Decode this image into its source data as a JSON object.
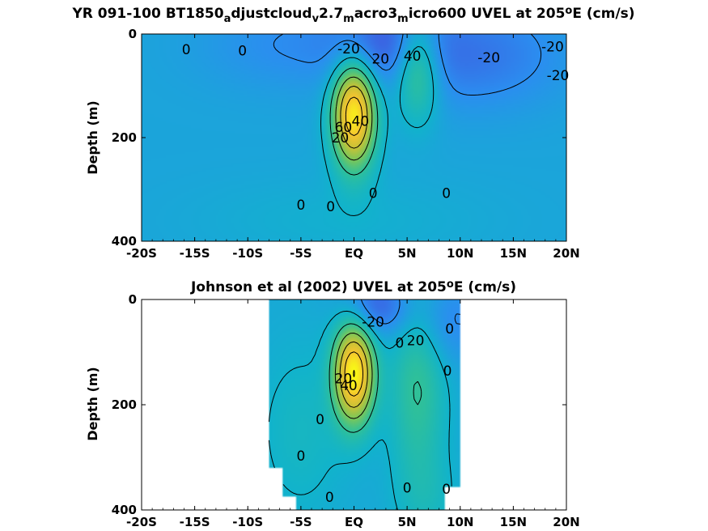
{
  "chart_data": [
    {
      "type": "heatmap",
      "title_parts": [
        "YR 091-100 BT1850",
        "a",
        "djustcloud",
        "v",
        "2.7",
        "m",
        "acro3",
        "m",
        "icro600 UVEL at 205",
        "o",
        "E (cm/s)"
      ],
      "ylabel": "Depth (m)",
      "xlim": [
        -20,
        20
      ],
      "ylim": [
        0,
        400
      ],
      "xticks": [
        -20,
        -15,
        -10,
        -5,
        0,
        5,
        10,
        15,
        20
      ],
      "xtick_labels": [
        "-20S",
        "-15S",
        "-10S",
        "-5S",
        "EQ",
        "5N",
        "10N",
        "15N",
        "20N"
      ],
      "yticks": [
        0,
        200,
        400
      ],
      "ytick_labels": [
        "0",
        "200",
        "400"
      ],
      "colorscale": [
        "#3d5ee0",
        "#2b8ef0",
        "#11b3cc",
        "#2fc09a",
        "#7ac75a",
        "#c6c237",
        "#f5c430",
        "#f8f816"
      ],
      "value_range": [
        -40,
        100
      ],
      "background": -8,
      "features": [
        {
          "name": "EUC",
          "x": 0,
          "y": 155,
          "amp": 105,
          "sx": 1.4,
          "sy": 70
        },
        {
          "name": "NECC",
          "x": 6,
          "y": 60,
          "amp": 45,
          "sx": 1.5,
          "sy": 70
        },
        {
          "name": "SEC-north",
          "x": 3,
          "y": 10,
          "amp": -22,
          "sx": 3.5,
          "sy": 55
        },
        {
          "name": "SEC-mid",
          "x": 11,
          "y": 40,
          "amp": -22,
          "sx": 6,
          "sy": 70
        },
        {
          "name": "SEC-south",
          "x": -6,
          "y": 20,
          "amp": -12,
          "sx": 6,
          "sy": 60
        },
        {
          "name": "deep",
          "x": -1,
          "y": 360,
          "amp": 6,
          "sx": 10,
          "sy": 60
        }
      ],
      "contour_labels": [
        {
          "text": "0",
          "x": -15.8,
          "y": 30
        },
        {
          "text": "0",
          "x": -10.5,
          "y": 32
        },
        {
          "text": "-20",
          "x": -0.5,
          "y": 28
        },
        {
          "text": "20",
          "x": 2.5,
          "y": 48
        },
        {
          "text": "40",
          "x": 5.5,
          "y": 42
        },
        {
          "text": "-20",
          "x": 12.7,
          "y": 45
        },
        {
          "text": "-20",
          "x": 18.7,
          "y": 24
        },
        {
          "text": "-20",
          "x": 19.2,
          "y": 80
        },
        {
          "text": "0",
          "x": -5.0,
          "y": 330
        },
        {
          "text": "0",
          "x": -2.2,
          "y": 333
        },
        {
          "text": "0",
          "x": 1.8,
          "y": 307
        },
        {
          "text": "0",
          "x": 8.7,
          "y": 307
        },
        {
          "text": "60",
          "x": -1.0,
          "y": 180
        },
        {
          "text": "20",
          "x": -1.3,
          "y": 200
        },
        {
          "text": "40",
          "x": 0.6,
          "y": 168
        }
      ]
    },
    {
      "type": "heatmap",
      "title_parts": [
        "Johnson et al (2002) UVEL at 205",
        "o",
        "E (cm/s)"
      ],
      "ylabel": "Depth (m)",
      "xlim": [
        -20,
        20
      ],
      "ylim": [
        0,
        400
      ],
      "data_xrange": [
        -8,
        10
      ],
      "xticks": [
        -20,
        -15,
        -10,
        -5,
        0,
        5,
        10,
        15,
        20
      ],
      "xtick_labels": [
        "-20S",
        "-15S",
        "-10S",
        "-5S",
        "EQ",
        "5N",
        "10N",
        "15N",
        "20N"
      ],
      "yticks": [
        0,
        200,
        400
      ],
      "ytick_labels": [
        "0",
        "200",
        "400"
      ],
      "colorscale": [
        "#3d5ee0",
        "#2b8ef0",
        "#11b3cc",
        "#2fc09a",
        "#7ac75a",
        "#c6c237",
        "#f5c430",
        "#f8f816"
      ],
      "value_range": [
        -40,
        100
      ],
      "background": -6,
      "features": [
        {
          "name": "EUC",
          "x": 0,
          "y": 140,
          "amp": 105,
          "sx": 1.3,
          "sy": 65
        },
        {
          "name": "NECC",
          "x": 6,
          "y": 150,
          "amp": 28,
          "sx": 1.8,
          "sy": 140
        },
        {
          "name": "SEC-surface",
          "x": 2.2,
          "y": 10,
          "amp": -30,
          "sx": 2.2,
          "sy": 40
        },
        {
          "name": "SEC-north",
          "x": 8.5,
          "y": 40,
          "amp": -18,
          "sx": 3,
          "sy": 60
        },
        {
          "name": "deep-south",
          "x": -5,
          "y": 250,
          "amp": 10,
          "sx": 3,
          "sy": 120
        },
        {
          "name": "deep-north",
          "x": 7,
          "y": 380,
          "amp": 8,
          "sx": 2,
          "sy": 60
        }
      ],
      "contour_labels": [
        {
          "text": "-20",
          "x": 1.8,
          "y": 42
        },
        {
          "text": "0",
          "x": 4.3,
          "y": 82
        },
        {
          "text": "20",
          "x": 5.8,
          "y": 78
        },
        {
          "text": "0",
          "x": 9.0,
          "y": 55
        },
        {
          "text": "0",
          "x": 8.8,
          "y": 135
        },
        {
          "text": "20",
          "x": -1.0,
          "y": 150
        },
        {
          "text": "40",
          "x": -0.5,
          "y": 163
        },
        {
          "text": "0",
          "x": -3.2,
          "y": 228
        },
        {
          "text": "0",
          "x": -5.0,
          "y": 297
        },
        {
          "text": "0",
          "x": -2.3,
          "y": 375
        },
        {
          "text": "0",
          "x": 5.0,
          "y": 358
        },
        {
          "text": "0",
          "x": 8.7,
          "y": 360
        }
      ]
    }
  ]
}
